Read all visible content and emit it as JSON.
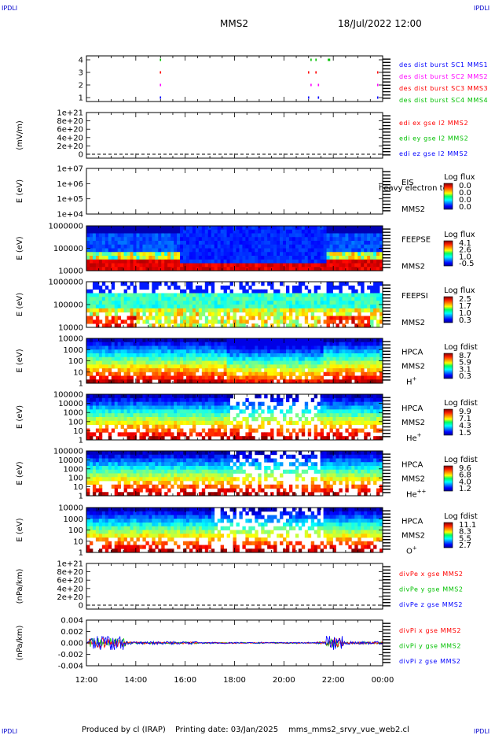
{
  "header": {
    "corner_tl": "IPDLI",
    "corner_tr": "IPDLI",
    "corner_bl": "IPDLI",
    "corner_br": "IPDLI",
    "spacecraft": "MMS2",
    "datetime": "18/Jul/2022 12:00"
  },
  "footer": {
    "produced_by": "Produced by cl (IRAP)",
    "printing_date": "Printing date: 03/Jan/2025",
    "filename": "mms_mms2_srvy_vue_web2.cl"
  },
  "colors": {
    "red": "#ff0000",
    "green": "#00c000",
    "blue": "#0000ff",
    "magenta": "#ff00ff"
  },
  "chart_data": [
    {
      "id": "p1",
      "type": "scatter",
      "ylabel": "",
      "yticks": [
        "4",
        "3",
        "2",
        "1"
      ],
      "legend": [
        {
          "text": "des dist burst SC1 MMS1",
          "color": "#0000ff"
        },
        {
          "text": "des dist burst SC2 MMS2",
          "color": "#ff00ff"
        },
        {
          "text": "des dist burst SC3 MMS3",
          "color": "#ff0000"
        },
        {
          "text": "des dist burst SC4 MMS4",
          "color": "#00c000"
        }
      ],
      "series": [
        {
          "sc": 4,
          "color": "#00c000",
          "times": [
            15.0,
            21.1,
            21.3,
            21.8,
            21.85
          ]
        },
        {
          "sc": 3,
          "color": "#ff0000",
          "times": [
            15.0,
            21.0,
            21.3,
            23.8
          ]
        },
        {
          "sc": 2,
          "color": "#ff00ff",
          "times": [
            15.0,
            21.1,
            21.4,
            23.8
          ]
        },
        {
          "sc": 1,
          "color": "#0000ff",
          "times": [
            15.0,
            21.0,
            21.4,
            23.8
          ]
        }
      ]
    },
    {
      "id": "p2",
      "type": "line",
      "ylabel": "(mV/m)",
      "yticks": [
        "1e+21",
        "8e+20",
        "6e+20",
        "4e+20",
        "2e+20",
        "0"
      ],
      "legend": [
        {
          "text": "edi ex gse l2 MMS2",
          "color": "#ff0000"
        },
        {
          "text": "edi ey gse l2 MMS2",
          "color": "#00c000"
        },
        {
          "text": "edi ez gse l2 MMS2",
          "color": "#0000ff"
        }
      ]
    },
    {
      "id": "p3",
      "type": "heatmap",
      "ylabel": "E (eV)",
      "yticks": [
        "1e+07",
        "1e+06",
        "1e+05",
        "1e+04"
      ],
      "label1": "EIS",
      "label1_overlap": "heavy electron to",
      "label2": "MMS2",
      "cbar_title": "Log flux",
      "cbar_ticks": [
        "0.0",
        "0.0",
        "0.0",
        "0.0"
      ]
    },
    {
      "id": "p4",
      "type": "heatmap",
      "ylabel": "E (eV)",
      "yticks": [
        "1000000",
        "100000",
        "10000"
      ],
      "label1": "FEEPSE",
      "label2": "MMS2",
      "cbar_title": "Log flux",
      "cbar_ticks": [
        "4.1",
        "2.6",
        "1.0",
        "-0.5"
      ]
    },
    {
      "id": "p5",
      "type": "heatmap",
      "ylabel": "E (eV)",
      "yticks": [
        "1000000",
        "100000",
        "10000"
      ],
      "label1": "FEEPSI",
      "label2": "MMS2",
      "cbar_title": "Log flux",
      "cbar_ticks": [
        "2.5",
        "1.7",
        "1.0",
        "0.3"
      ]
    },
    {
      "id": "p6",
      "type": "heatmap",
      "ylabel": "E (eV)",
      "yticks": [
        "10000",
        "1000",
        "100",
        "10",
        "1"
      ],
      "label1": "HPCA",
      "label2": "MMS2",
      "ion": "H",
      "ion_sup": "+",
      "cbar_title": "Log fdist",
      "cbar_ticks": [
        "8.7",
        "5.9",
        "3.1",
        "0.3"
      ]
    },
    {
      "id": "p7",
      "type": "heatmap",
      "ylabel": "E (eV)",
      "yticks": [
        "100000",
        "10000",
        "1000",
        "100",
        "10",
        "1"
      ],
      "label1": "HPCA",
      "label2": "MMS2",
      "ion": "He",
      "ion_sup": "+",
      "cbar_title": "Log fdist",
      "cbar_ticks": [
        "9.9",
        "7.1",
        "4.3",
        "1.5"
      ]
    },
    {
      "id": "p8",
      "type": "heatmap",
      "ylabel": "E (eV)",
      "yticks": [
        "100000",
        "10000",
        "1000",
        "100",
        "10",
        "1"
      ],
      "label1": "HPCA",
      "label2": "MMS2",
      "ion": "He",
      "ion_sup": "++",
      "cbar_title": "Log fdist",
      "cbar_ticks": [
        "9.6",
        "6.8",
        "4.0",
        "1.2"
      ]
    },
    {
      "id": "p9",
      "type": "heatmap",
      "ylabel": "E (eV)",
      "yticks": [
        "10000",
        "1000",
        "100",
        "10",
        "1"
      ],
      "label1": "HPCA",
      "label2": "MMS2",
      "ion": "O",
      "ion_sup": "+",
      "cbar_title": "Log fdist",
      "cbar_ticks": [
        "11.1",
        "8.3",
        "5.5",
        "2.7"
      ]
    },
    {
      "id": "p10",
      "type": "line",
      "ylabel": "(nPa/km)",
      "yticks": [
        "1e+21",
        "8e+20",
        "6e+20",
        "4e+20",
        "2e+20",
        "0"
      ],
      "legend": [
        {
          "text": "divPe x gse MMS2",
          "color": "#ff0000"
        },
        {
          "text": "divPe y gse MMS2",
          "color": "#00c000"
        },
        {
          "text": "divPe z gse MMS2",
          "color": "#0000ff"
        }
      ]
    },
    {
      "id": "p11",
      "type": "line",
      "ylabel": "(nPa/km)",
      "yticks": [
        "0.004",
        "0.002",
        "0.000",
        "-0.002",
        "-0.004"
      ],
      "legend": [
        {
          "text": "divPi x gse MMS2",
          "color": "#ff0000"
        },
        {
          "text": "divPi y gse MMS2",
          "color": "#00c000"
        },
        {
          "text": "divPi z gse MMS2",
          "color": "#0000ff"
        }
      ]
    }
  ],
  "xaxis": {
    "ticks": [
      "12:00",
      "14:00",
      "16:00",
      "18:00",
      "20:00",
      "22:00",
      "00:00"
    ],
    "range_hours": [
      12,
      24
    ]
  }
}
